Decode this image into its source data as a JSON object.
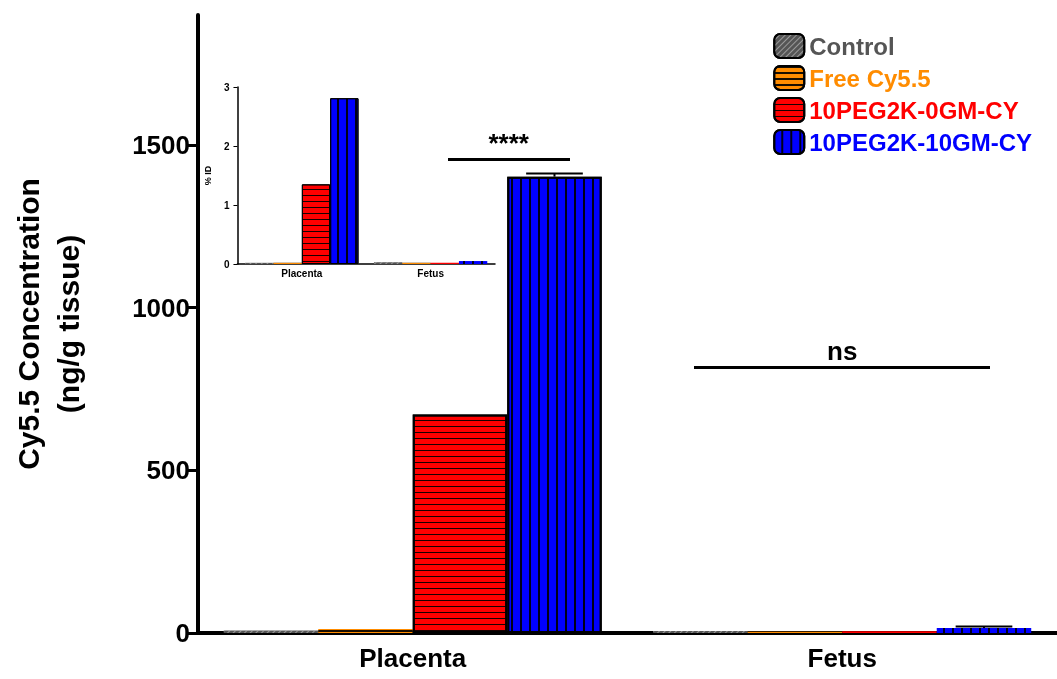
{
  "chart_data": [
    {
      "type": "bar",
      "ylabel": "Cy5.5 Concentration\n(ng/g tissue)",
      "categories": [
        "Placenta",
        "Fetus"
      ],
      "series": [
        {
          "name": "Control",
          "color": "#555555",
          "values": [
            8,
            6
          ]
        },
        {
          "name": "Free Cy5.5",
          "color": "#ff8c00",
          "values": [
            12,
            5
          ]
        },
        {
          "name": "10PEG2K-0GM-CY",
          "color": "#ff0000",
          "values": [
            672,
            5
          ]
        },
        {
          "name": "10PEG2K-10GM-CY",
          "color": "#0000ff",
          "values": [
            1403,
            15
          ],
          "errors": [
            10,
            5
          ]
        }
      ],
      "ylim": [
        0,
        1900
      ],
      "yticks": [
        0,
        500,
        1000,
        1500
      ],
      "grid": false,
      "legend": "top right",
      "annotations": [
        "****",
        "ns"
      ]
    },
    {
      "type": "bar",
      "ylabel": "% ID",
      "categories": [
        "Placenta",
        "Fetus"
      ],
      "series": [
        {
          "color": "#555555",
          "values": [
            0.02,
            0.03
          ]
        },
        {
          "color": "#ff8c00",
          "values": [
            0.02,
            0.02
          ]
        },
        {
          "color": "#ff0000",
          "values": [
            1.35,
            0.02
          ]
        },
        {
          "color": "#0000ff",
          "values": [
            2.81,
            0.05
          ]
        }
      ],
      "ylim": [
        0,
        3
      ],
      "yticks": [
        0,
        1,
        2,
        3
      ],
      "grid": false,
      "legend": false
    }
  ]
}
